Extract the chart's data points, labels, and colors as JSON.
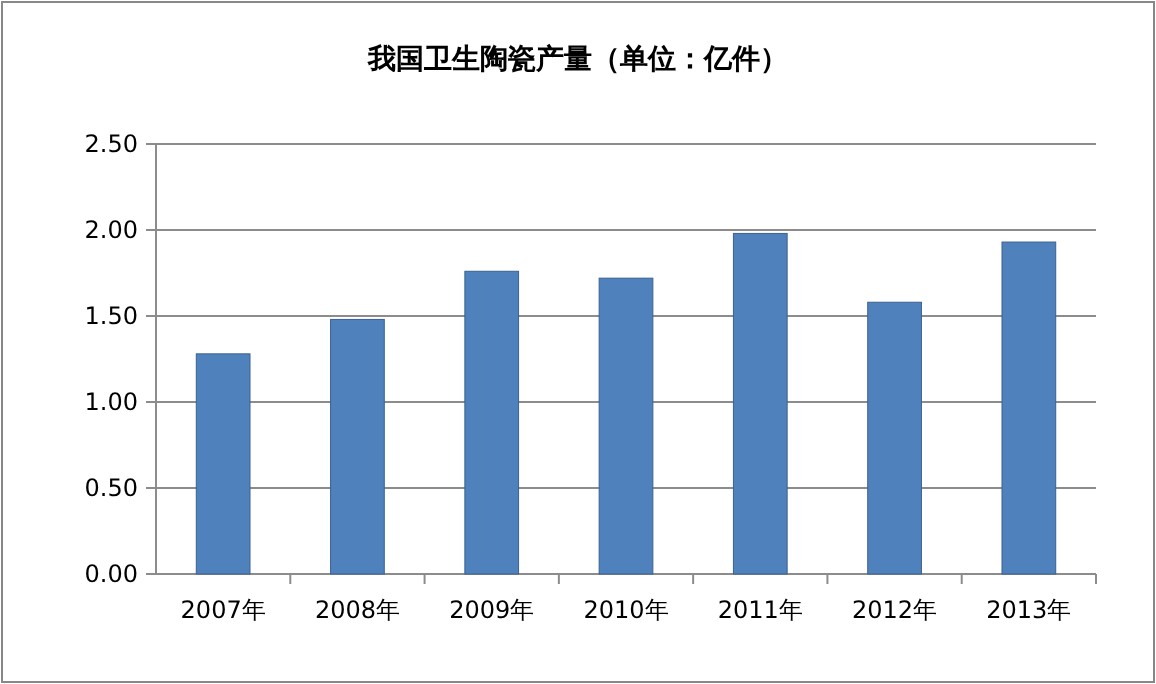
{
  "chart_data": {
    "type": "bar",
    "title": "我国卫生陶瓷产量（单位：亿件）",
    "categories": [
      "2007年",
      "2008年",
      "2009年",
      "2010年",
      "2011年",
      "2012年",
      "2013年"
    ],
    "values": [
      1.28,
      1.48,
      1.76,
      1.72,
      1.98,
      1.58,
      1.93
    ],
    "color": "#4f81bd",
    "ylim": [
      0,
      2.5
    ],
    "yticks": [
      {
        "value": 0,
        "label": "0.00"
      },
      {
        "value": 0.5,
        "label": "0.50"
      },
      {
        "value": 1,
        "label": "1.00"
      },
      {
        "value": 1.5,
        "label": "1.50"
      },
      {
        "value": 2,
        "label": "2.00"
      },
      {
        "value": 2.5,
        "label": "2.50"
      }
    ],
    "grid": "y"
  }
}
